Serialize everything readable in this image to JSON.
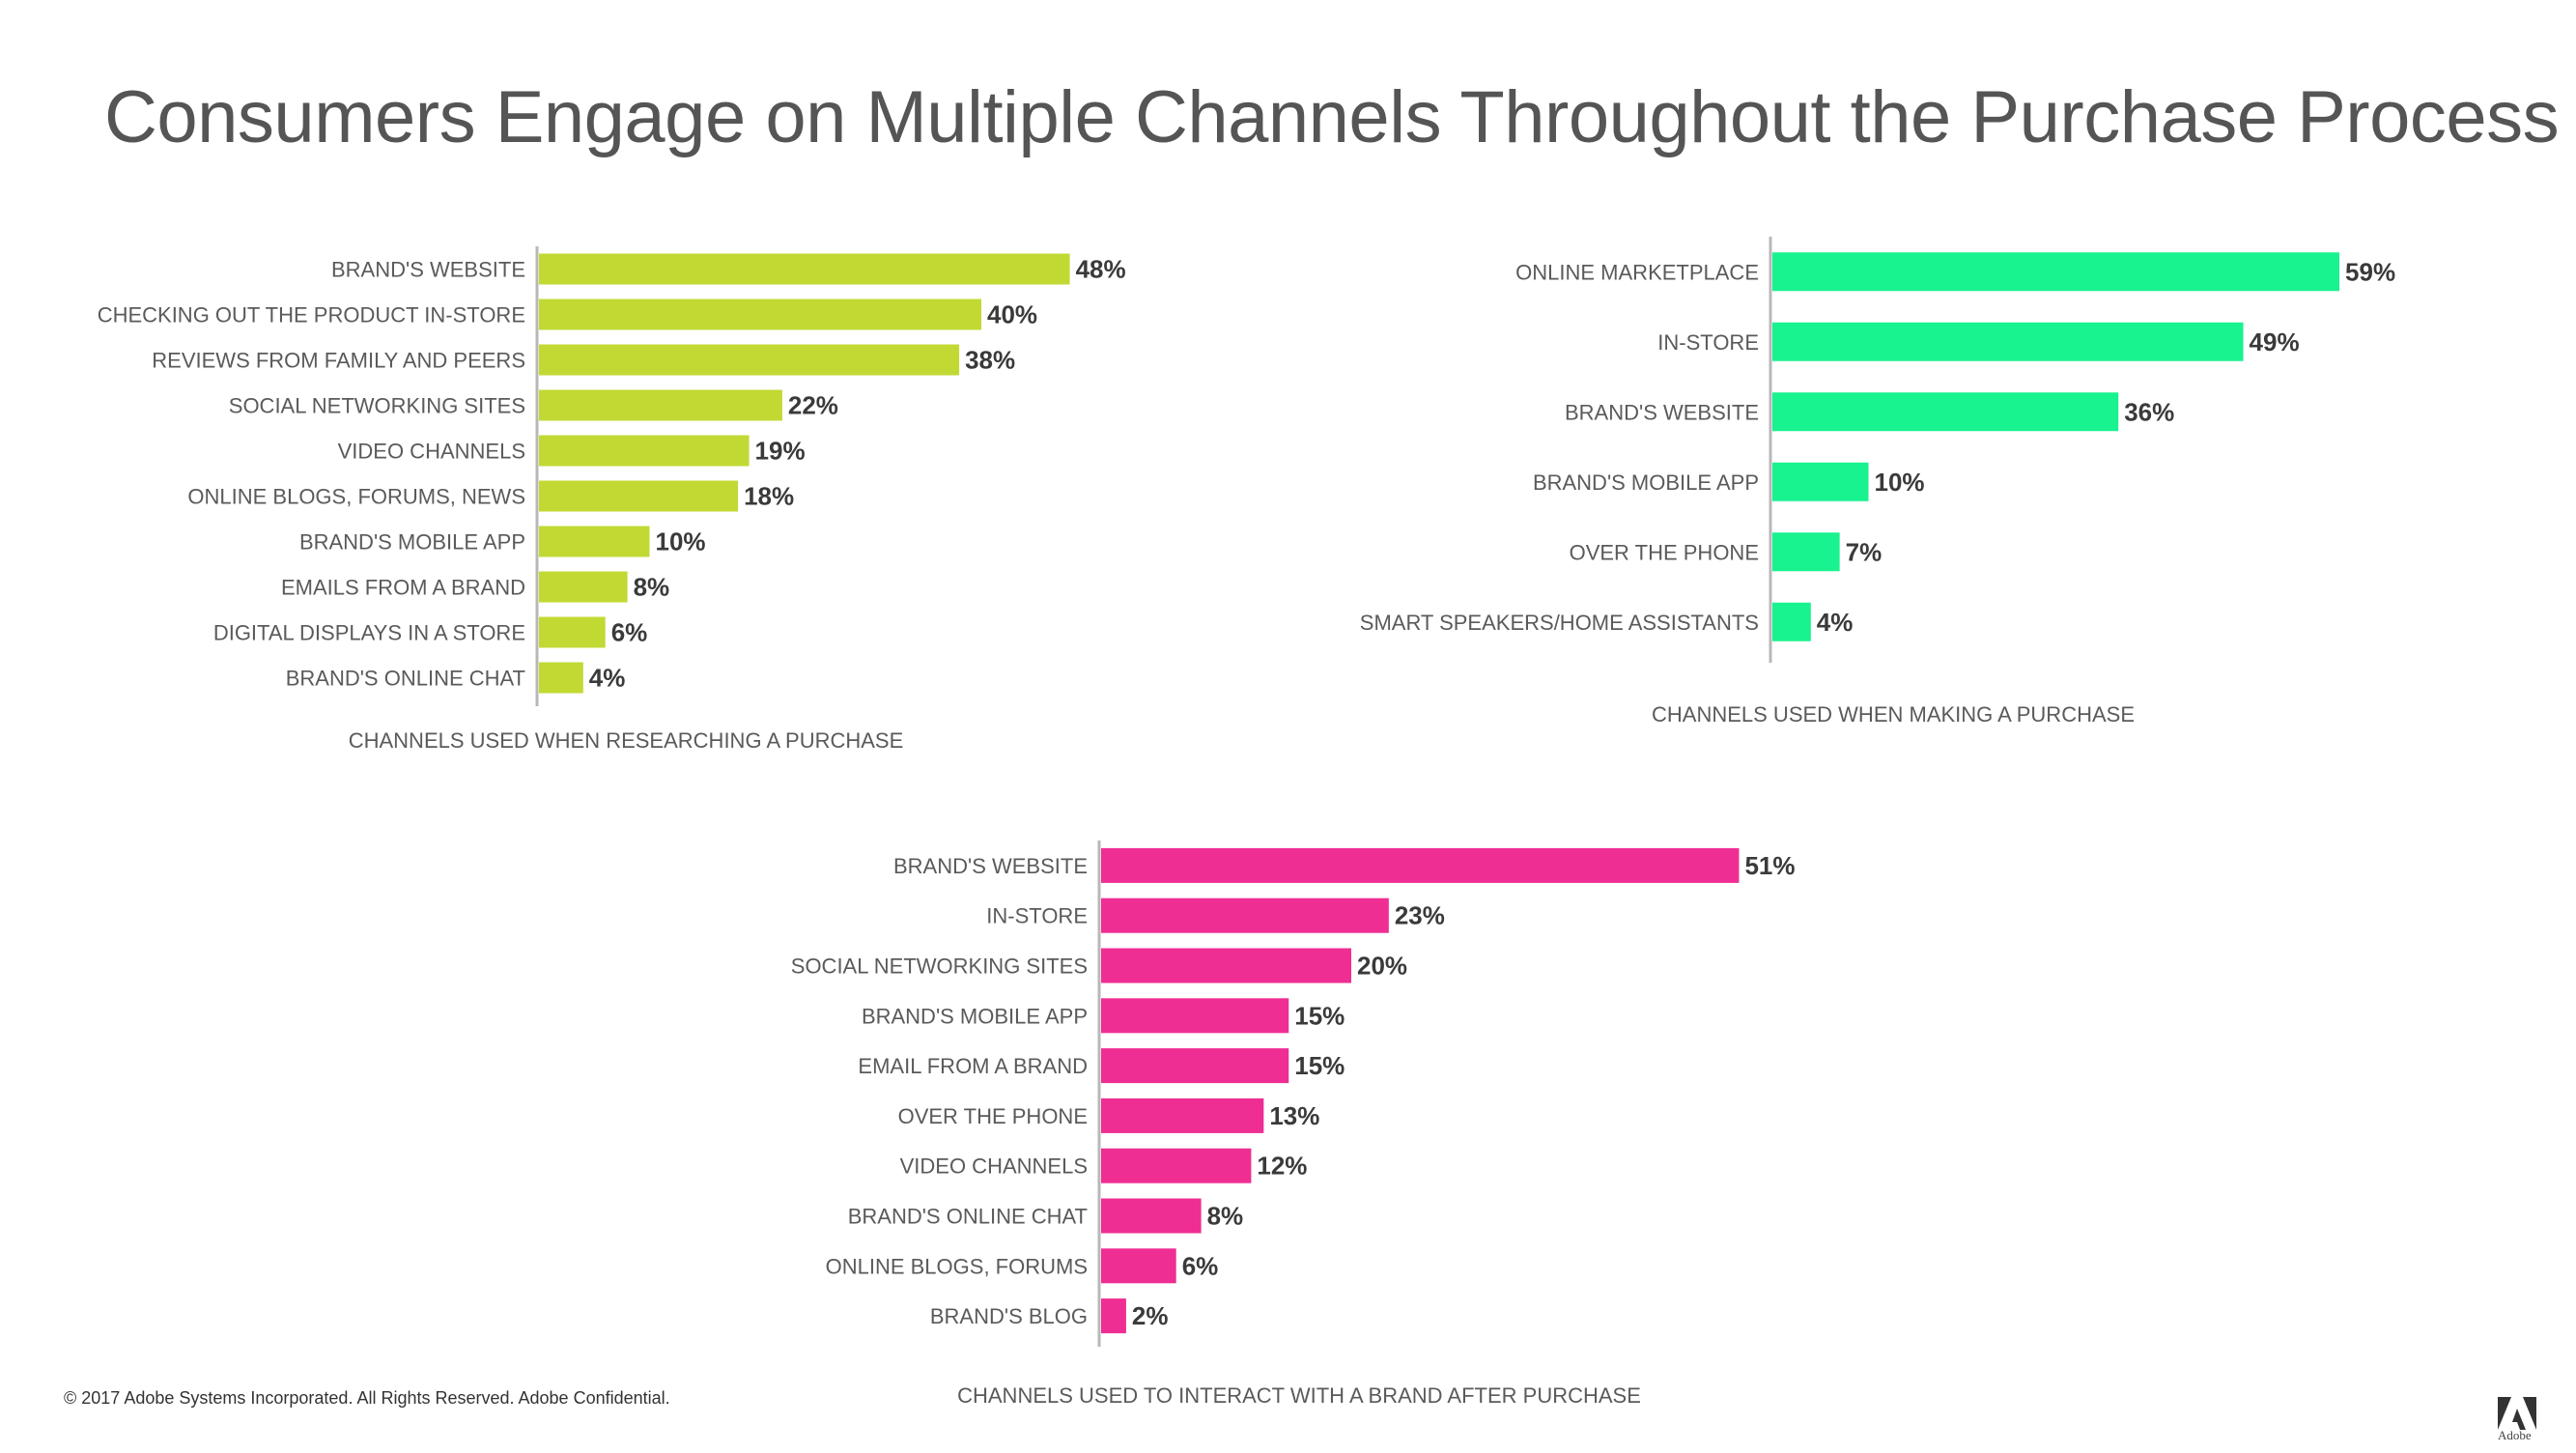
{
  "title": "Consumers Engage on Multiple Channels Throughout the Purchase Process",
  "footer": "© 2017 Adobe Systems Incorporated.  All Rights Reserved.  Adobe Confidential.",
  "logo_text": "Adobe",
  "colors": {
    "research": "#c2d934",
    "purchase": "#18f28f",
    "after": "#ef2e93"
  },
  "chart_data": [
    {
      "type": "bar",
      "orientation": "horizontal",
      "title": "CHANNELS USED WHEN RESEARCHING A PURCHASE",
      "unit": "%",
      "categories": [
        "BRAND'S WEBSITE",
        "CHECKING OUT THE PRODUCT IN-STORE",
        "REVIEWS FROM FAMILY AND PEERS",
        "SOCIAL NETWORKING SITES",
        "VIDEO CHANNELS",
        "ONLINE BLOGS, FORUMS, NEWS",
        "BRAND'S MOBILE APP",
        "EMAILS FROM A BRAND",
        "DIGITAL DISPLAYS IN A STORE",
        "BRAND'S ONLINE CHAT"
      ],
      "values": [
        48,
        40,
        38,
        22,
        19,
        18,
        10,
        8,
        6,
        4
      ],
      "labels": [
        "48%",
        "40%",
        "38%",
        "22%",
        "19%",
        "18%",
        "10%",
        "8%",
        "6%",
        "4%"
      ]
    },
    {
      "type": "bar",
      "orientation": "horizontal",
      "title": "CHANNELS USED WHEN  MAKING A PURCHASE",
      "unit": "%",
      "categories": [
        "ONLINE MARKETPLACE",
        "IN-STORE",
        "BRAND'S WEBSITE",
        "BRAND'S MOBILE APP",
        "OVER THE PHONE",
        "SMART SPEAKERS/HOME ASSISTANTS"
      ],
      "values": [
        59,
        49,
        36,
        10,
        7,
        4
      ],
      "labels": [
        "59%",
        "49%",
        "36%",
        "10%",
        "7%",
        "4%"
      ]
    },
    {
      "type": "bar",
      "orientation": "horizontal",
      "title": "CHANNELS USED TO INTERACT WITH A BRAND AFTER PURCHASE",
      "unit": "%",
      "categories": [
        "BRAND'S WEBSITE",
        "IN-STORE",
        "SOCIAL NETWORKING SITES",
        "BRAND'S MOBILE APP",
        "EMAIL FROM A BRAND",
        "OVER THE PHONE",
        "VIDEO CHANNELS",
        "BRAND'S ONLINE CHAT",
        "ONLINE BLOGS, FORUMS",
        "BRAND'S BLOG"
      ],
      "values": [
        51,
        23,
        20,
        15,
        15,
        13,
        12,
        8,
        6,
        2
      ],
      "labels": [
        "51%",
        "23%",
        "20%",
        "15%",
        "15%",
        "13%",
        "12%",
        "8%",
        "6%",
        "2%"
      ]
    }
  ]
}
